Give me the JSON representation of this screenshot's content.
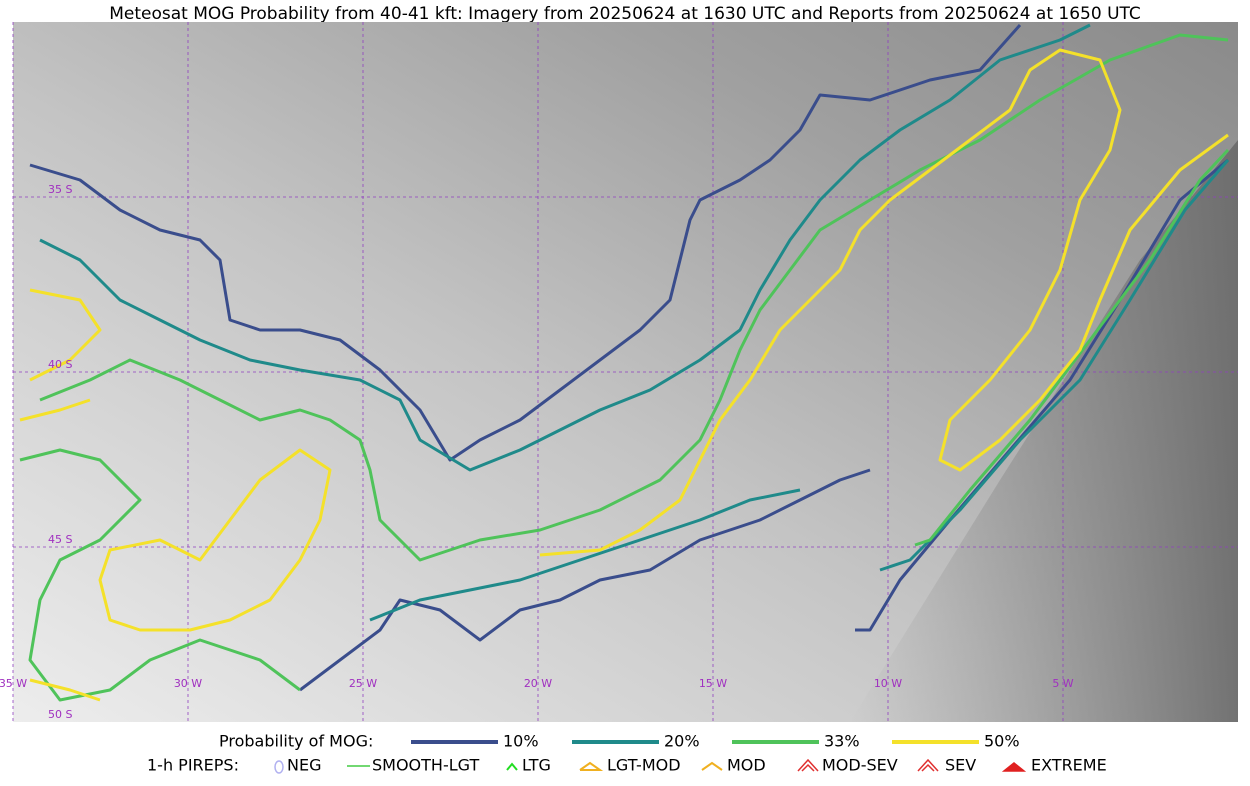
{
  "header": {
    "title": "Meteosat MOG Probability from 40-41 kft: Imagery from 20250624 at 1630 UTC and Reports from 20250624 at 1650 UTC"
  },
  "map": {
    "lat_labels": [
      "35 S",
      "40 S",
      "45 S",
      "50 S"
    ],
    "lon_labels": [
      "35 W",
      "30 W",
      "25 W",
      "20 W",
      "15 W",
      "10 W",
      "5 W"
    ]
  },
  "legend": {
    "probability": {
      "title": "Probability of MOG:",
      "items": [
        {
          "label": "10%",
          "color": "#3a4d8c"
        },
        {
          "label": "20%",
          "color": "#1f8a8a"
        },
        {
          "label": "33%",
          "color": "#4fc35a"
        },
        {
          "label": "50%",
          "color": "#f4e12a"
        }
      ]
    },
    "pireps": {
      "title": "1-h PIREPS:",
      "items": [
        "NEG",
        "SMOOTH-LGT",
        "LTG",
        "LGT-MOD",
        "MOD",
        "MOD-SEV",
        "SEV",
        "EXTREME"
      ]
    }
  }
}
